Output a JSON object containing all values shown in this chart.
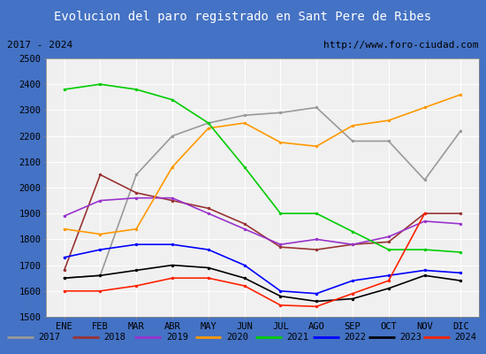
{
  "title": "Evolucion del paro registrado en Sant Pere de Ribes",
  "title_bg": "#4472c4",
  "subtitle_left": "2017 - 2024",
  "subtitle_right": "http://www.foro-ciudad.com",
  "months": [
    "ENE",
    "FEB",
    "MAR",
    "ABR",
    "MAY",
    "JUN",
    "JUL",
    "AGO",
    "SEP",
    "OCT",
    "NOV",
    "DIC"
  ],
  "ylim": [
    1500,
    2500
  ],
  "yticks": [
    1500,
    1600,
    1700,
    1800,
    1900,
    2000,
    2100,
    2200,
    2300,
    2400,
    2500
  ],
  "series": {
    "2017": {
      "color": "#999999",
      "data": [
        1650,
        1660,
        2050,
        2200,
        2250,
        2280,
        2290,
        2310,
        2180,
        2180,
        2030,
        2220
      ]
    },
    "2018": {
      "color": "#993333",
      "data": [
        1680,
        2050,
        1980,
        1950,
        1920,
        1860,
        1770,
        1760,
        1780,
        1790,
        1900,
        1900
      ]
    },
    "2019": {
      "color": "#9933cc",
      "data": [
        1890,
        1950,
        1960,
        1960,
        1900,
        1840,
        1780,
        1800,
        1780,
        1810,
        1870,
        1860
      ]
    },
    "2020": {
      "color": "#ff9900",
      "data": [
        1840,
        1820,
        1840,
        2080,
        2230,
        2250,
        2175,
        2160,
        2240,
        2260,
        2310,
        2360
      ]
    },
    "2021": {
      "color": "#00cc00",
      "data": [
        2380,
        2400,
        2380,
        2340,
        2250,
        2080,
        1900,
        1900,
        1830,
        1760,
        1760,
        1750
      ]
    },
    "2022": {
      "color": "#0000ff",
      "data": [
        1730,
        1760,
        1780,
        1780,
        1760,
        1700,
        1600,
        1590,
        1640,
        1660,
        1680,
        1670
      ]
    },
    "2023": {
      "color": "#000000",
      "data": [
        1650,
        1660,
        1680,
        1700,
        1690,
        1650,
        1580,
        1560,
        1570,
        1610,
        1660,
        1640
      ]
    },
    "2024": {
      "color": "#ff2200",
      "data": [
        1600,
        1600,
        1620,
        1650,
        1650,
        1620,
        1545,
        1540,
        1590,
        1640,
        1900,
        null
      ]
    }
  }
}
